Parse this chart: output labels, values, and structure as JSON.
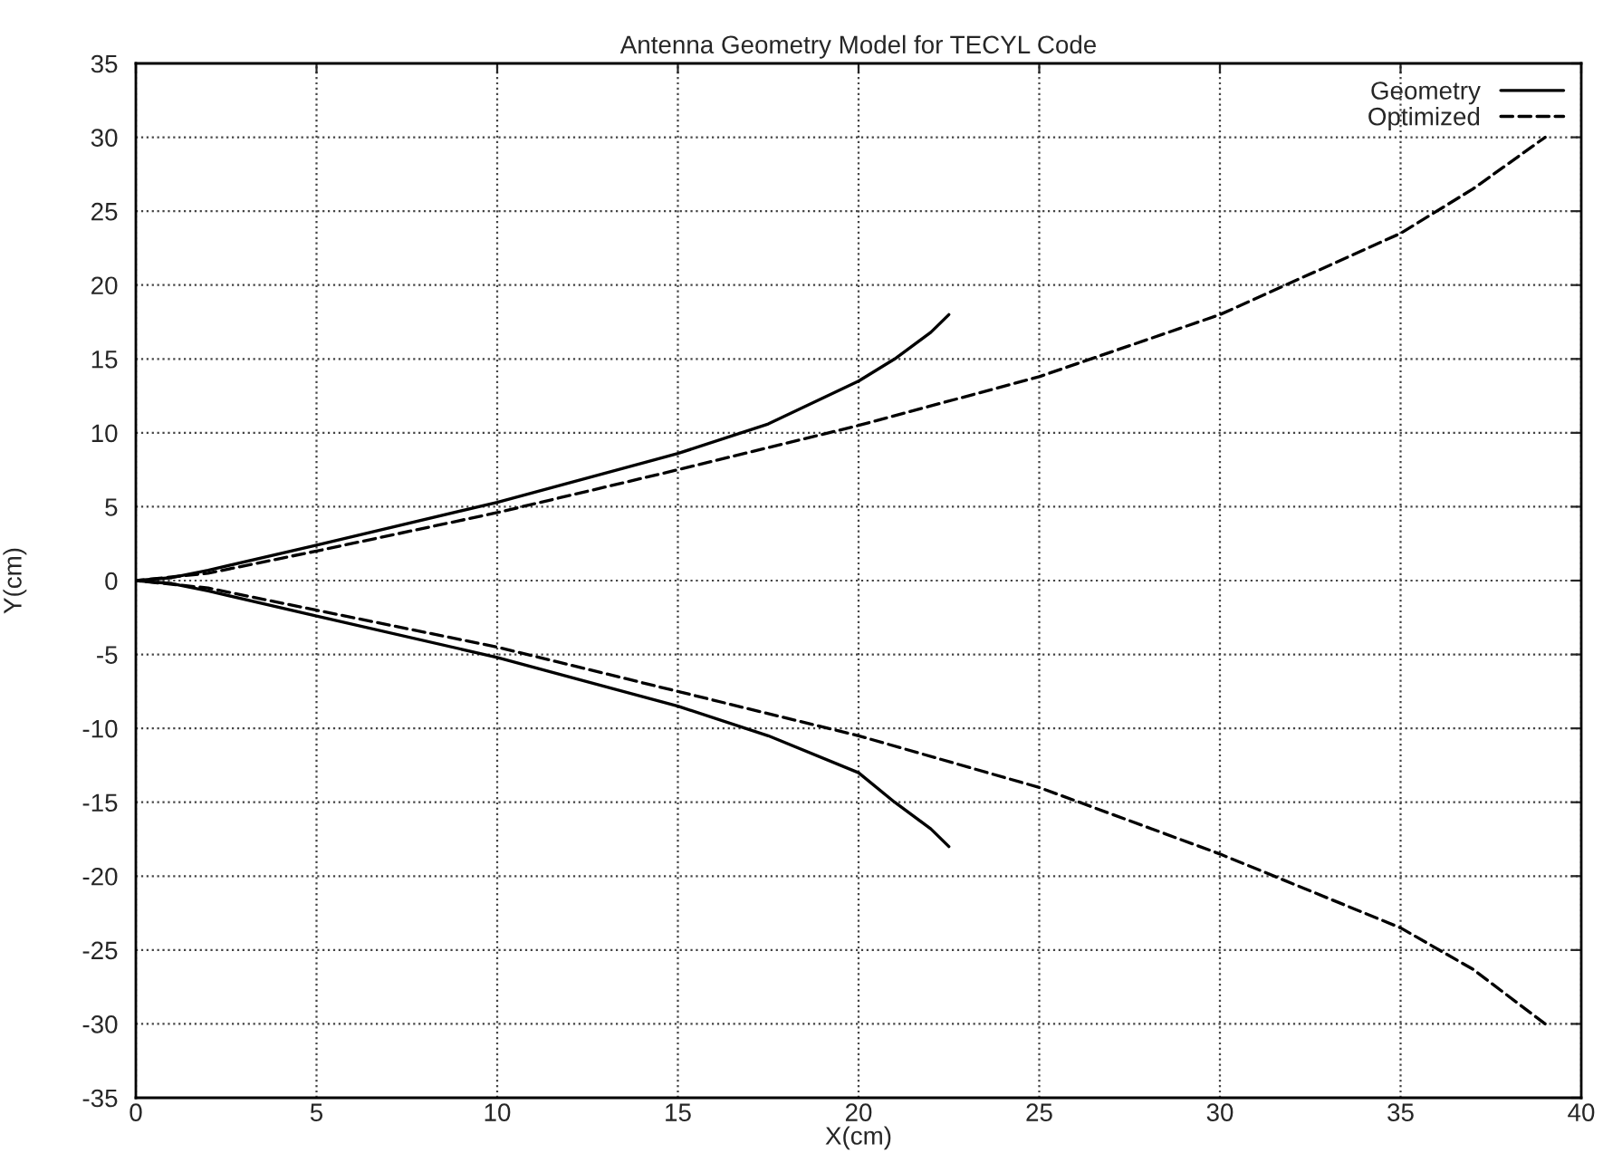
{
  "chart_data": {
    "type": "line",
    "title": "Antenna Geometry Model for TECYL Code",
    "xlabel": "X(cm)",
    "ylabel": "Y(cm)",
    "xlim": [
      0,
      40
    ],
    "xticks": [
      0,
      5,
      10,
      15,
      20,
      25,
      30,
      35,
      40
    ],
    "ylim": [
      -35,
      35
    ],
    "yticks": [
      -35,
      -30,
      -25,
      -20,
      -15,
      -10,
      -5,
      0,
      5,
      10,
      15,
      20,
      25,
      30,
      35
    ],
    "grid": true,
    "legend": "top right",
    "marker": "none",
    "series": [
      {
        "name": "Geometry",
        "color": "#000000",
        "line_style": "solid",
        "x": [
          22.5,
          22,
          21,
          20,
          17.5,
          15,
          10,
          5,
          2,
          1,
          0,
          1,
          2,
          5,
          10,
          15,
          17.5,
          20,
          21,
          22,
          22.5
        ],
        "values": [
          -18,
          -16.8,
          -15,
          -13,
          -10.5,
          -8.5,
          -5.2,
          -2.4,
          -0.7,
          -0.2,
          0,
          0.2,
          0.7,
          2.4,
          5.3,
          8.6,
          10.6,
          13.5,
          15,
          16.8,
          18
        ]
      },
      {
        "name": "Optimized",
        "color": "#000000",
        "line_style": "dashed",
        "x": [
          39,
          37,
          35,
          30,
          25,
          20,
          15,
          10,
          5,
          2,
          0,
          2,
          5,
          10,
          15,
          20,
          25,
          30,
          35,
          37,
          39
        ],
        "values": [
          -30,
          -26.3,
          -23.5,
          -18.5,
          -14,
          -10.5,
          -7.5,
          -4.5,
          -2,
          -0.5,
          0,
          0.5,
          2,
          4.6,
          7.5,
          10.5,
          13.8,
          18,
          23.5,
          26.5,
          30
        ]
      }
    ]
  }
}
